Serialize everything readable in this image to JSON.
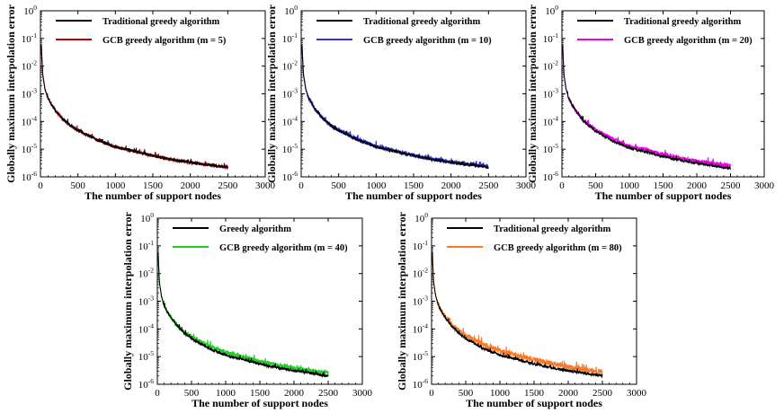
{
  "chart_data": [
    {
      "type": "line",
      "xlabel": "The number of support nodes",
      "ylabel": "Globally maximum interpolation error",
      "xlim": [
        0,
        3000
      ],
      "xticks": [
        0,
        500,
        1000,
        1500,
        2000,
        2500,
        3000
      ],
      "ylim": [
        1e-06,
        1
      ],
      "yscale": "log",
      "ytick_exponents": [
        "0",
        "-1",
        "-2",
        "-3",
        "-4",
        "-5",
        "-6"
      ],
      "legend_position": "top-right",
      "series": [
        {
          "name": "Traditional greedy algorithm",
          "color": "#000000",
          "noise": 0.05,
          "x": [
            10,
            30,
            60,
            100,
            150,
            200,
            300,
            400,
            500,
            750,
            1000,
            1250,
            1500,
            1750,
            2000,
            2250,
            2500
          ],
          "y": [
            0.06,
            0.005,
            0.0015,
            0.0007,
            0.0004,
            0.00025,
            0.00012,
            7e-05,
            4.8e-05,
            2.2e-05,
            1.2e-05,
            8.5e-06,
            5.8e-06,
            4.2e-06,
            3.3e-06,
            2.7e-06,
            2.2e-06
          ]
        },
        {
          "name": "GCB greedy algorithm (m = 5)",
          "color": "#c00000",
          "noise": 0.05,
          "x": [
            10,
            30,
            60,
            100,
            150,
            200,
            300,
            400,
            500,
            750,
            1000,
            1250,
            1500,
            1750,
            2000,
            2250,
            2500
          ],
          "y": [
            0.06,
            0.005,
            0.0015,
            0.0007,
            0.0004,
            0.00025,
            0.00012,
            7e-05,
            4.8e-05,
            2.2e-05,
            1.2e-05,
            8.5e-06,
            5.8e-06,
            4.2e-06,
            3.3e-06,
            2.7e-06,
            2.2e-06
          ]
        }
      ]
    },
    {
      "type": "line",
      "xlabel": "The number of support nodes",
      "ylabel": "Globally maximum interpolation error",
      "xlim": [
        0,
        3000
      ],
      "xticks": [
        0,
        500,
        1000,
        1500,
        2000,
        2500,
        3000
      ],
      "ylim": [
        1e-06,
        1
      ],
      "yscale": "log",
      "ytick_exponents": [
        "0",
        "-1",
        "-2",
        "-3",
        "-4",
        "-5",
        "-6"
      ],
      "legend_position": "top-right",
      "series": [
        {
          "name": "Traditional greedy algorithm",
          "color": "#000000",
          "noise": 0.05,
          "x": [
            10,
            30,
            60,
            100,
            150,
            200,
            300,
            400,
            500,
            750,
            1000,
            1250,
            1500,
            1750,
            2000,
            2250,
            2500
          ],
          "y": [
            0.06,
            0.005,
            0.0015,
            0.0007,
            0.0004,
            0.00025,
            0.00012,
            7e-05,
            4.8e-05,
            2.2e-05,
            1.2e-05,
            8.5e-06,
            5.8e-06,
            4.2e-06,
            3.3e-06,
            2.7e-06,
            2.2e-06
          ]
        },
        {
          "name": "GCB greedy algorithm (m = 10)",
          "color": "#3333e6",
          "noise": 0.07,
          "x": [
            10,
            30,
            60,
            100,
            150,
            200,
            300,
            400,
            500,
            750,
            1000,
            1250,
            1500,
            1750,
            2000,
            2250,
            2500
          ],
          "y": [
            0.06,
            0.005,
            0.0015,
            0.0007,
            0.0004,
            0.00025,
            0.00012,
            7e-05,
            5e-05,
            2.3e-05,
            1.25e-05,
            8.8e-06,
            6e-06,
            4.5e-06,
            3.5e-06,
            2.9e-06,
            2.4e-06
          ]
        }
      ]
    },
    {
      "type": "line",
      "xlabel": "The number of support nodes",
      "ylabel": "Globally maximum interpolation error",
      "xlim": [
        0,
        3000
      ],
      "xticks": [
        0,
        500,
        1000,
        1500,
        2000,
        2500,
        3000
      ],
      "ylim": [
        1e-06,
        1
      ],
      "yscale": "log",
      "ytick_exponents": [
        "0",
        "-1",
        "-2",
        "-3",
        "-4",
        "-5",
        "-6"
      ],
      "legend_position": "top-right",
      "series": [
        {
          "name": "Traditional greedy algorithm",
          "color": "#000000",
          "noise": 0.05,
          "x": [
            10,
            30,
            60,
            100,
            150,
            200,
            300,
            400,
            500,
            750,
            1000,
            1250,
            1500,
            1750,
            2000,
            2250,
            2500
          ],
          "y": [
            0.06,
            0.005,
            0.0015,
            0.0007,
            0.0004,
            0.00025,
            0.00012,
            7e-05,
            4.5e-05,
            2e-05,
            1.1e-05,
            8e-06,
            5.5e-06,
            4e-06,
            3.1e-06,
            2.5e-06,
            2e-06
          ]
        },
        {
          "name": "GCB greedy algorithm (m = 20)",
          "color": "#ee00ee",
          "noise": 0.07,
          "x": [
            10,
            30,
            60,
            100,
            150,
            200,
            300,
            400,
            500,
            750,
            1000,
            1250,
            1500,
            1750,
            2000,
            2250,
            2500
          ],
          "y": [
            0.06,
            0.005,
            0.0015,
            0.0007,
            0.0004,
            0.00026,
            0.00013,
            7.5e-05,
            5e-05,
            2.4e-05,
            1.3e-05,
            9.3e-06,
            6.4e-06,
            4.8e-06,
            3.7e-06,
            3e-06,
            2.5e-06
          ]
        }
      ]
    },
    {
      "type": "line",
      "xlabel": "The number of support nodes",
      "ylabel": "Globally maximum interpolation error",
      "xlim": [
        0,
        3000
      ],
      "xticks": [
        0,
        500,
        1000,
        1500,
        2000,
        2500,
        3000
      ],
      "ylim": [
        1e-06,
        1
      ],
      "yscale": "log",
      "ytick_exponents": [
        "0",
        "-1",
        "-2",
        "-3",
        "-4",
        "-5",
        "-6"
      ],
      "legend_position": "top-right",
      "series": [
        {
          "name": "Greedy algorithm",
          "color": "#000000",
          "noise": 0.05,
          "x": [
            10,
            30,
            60,
            100,
            150,
            200,
            300,
            400,
            500,
            750,
            1000,
            1250,
            1500,
            1750,
            2000,
            2250,
            2500
          ],
          "y": [
            0.06,
            0.005,
            0.0015,
            0.0007,
            0.0004,
            0.00025,
            0.00012,
            7e-05,
            4.5e-05,
            2e-05,
            1.1e-05,
            8e-06,
            5.5e-06,
            4e-06,
            3.1e-06,
            2.5e-06,
            2e-06
          ]
        },
        {
          "name": "GCB greedy algorithm (m = 40)",
          "color": "#22cc22",
          "noise": 0.07,
          "x": [
            10,
            30,
            60,
            100,
            150,
            200,
            300,
            400,
            500,
            750,
            1000,
            1250,
            1500,
            1750,
            2000,
            2250,
            2500
          ],
          "y": [
            0.06,
            0.005,
            0.0015,
            0.0007,
            0.0004,
            0.00026,
            0.00013,
            7.8e-05,
            5.2e-05,
            2.5e-05,
            1.4e-05,
            9.8e-06,
            6.8e-06,
            5e-06,
            3.9e-06,
            3.1e-06,
            2.6e-06
          ]
        }
      ]
    },
    {
      "type": "line",
      "xlabel": "The number of support nodes",
      "ylabel": "Globally maximum interpolation error",
      "xlim": [
        0,
        3000
      ],
      "xticks": [
        0,
        500,
        1000,
        1500,
        2000,
        2500,
        3000
      ],
      "ylim": [
        1e-06,
        1
      ],
      "yscale": "log",
      "ytick_exponents": [
        "0",
        "-1",
        "-2",
        "-3",
        "-4",
        "-5",
        "-6"
      ],
      "legend_position": "top-right",
      "series": [
        {
          "name": "Traditional greedy algorithm",
          "color": "#000000",
          "noise": 0.05,
          "x": [
            10,
            30,
            60,
            100,
            150,
            200,
            300,
            400,
            500,
            750,
            1000,
            1250,
            1500,
            1750,
            2000,
            2250,
            2500
          ],
          "y": [
            0.06,
            0.005,
            0.0015,
            0.0007,
            0.0004,
            0.00025,
            0.00012,
            7e-05,
            4.5e-05,
            2e-05,
            1.1e-05,
            8e-06,
            5.5e-06,
            4e-06,
            3.1e-06,
            2.5e-06,
            2e-06
          ]
        },
        {
          "name": "GCB greedy algorithm (m = 80)",
          "color": "#ff7722",
          "noise": 0.09,
          "x": [
            10,
            30,
            60,
            100,
            150,
            200,
            300,
            400,
            500,
            750,
            1000,
            1250,
            1500,
            1750,
            2000,
            2250,
            2500
          ],
          "y": [
            0.06,
            0.005,
            0.0016,
            0.00075,
            0.00043,
            0.00028,
            0.00014,
            8.5e-05,
            5.8e-05,
            2.8e-05,
            1.6e-05,
            1.1e-05,
            7.8e-06,
            5.7e-06,
            4.3e-06,
            3.4e-06,
            2.7e-06
          ]
        }
      ]
    }
  ]
}
